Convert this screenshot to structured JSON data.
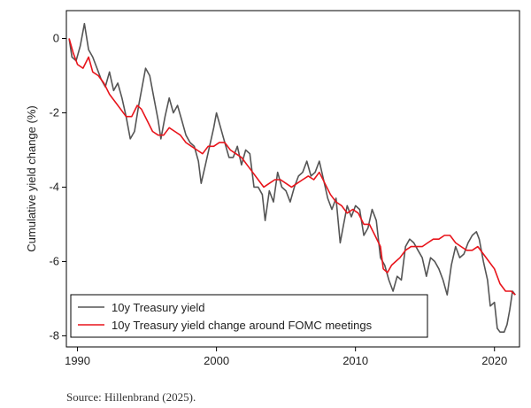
{
  "chart_data": {
    "type": "line",
    "title": "",
    "xlabel": "",
    "ylabel": "Cumulative yield change (%)",
    "xlim": [
      1989.2,
      2021.8
    ],
    "ylim": [
      -8.3,
      0.75
    ],
    "x_ticks": [
      1990,
      2000,
      2010,
      2020
    ],
    "y_ticks": [
      0,
      -2,
      -4,
      -6,
      -8
    ],
    "grid": false,
    "legend_position": "bottom-left",
    "series": [
      {
        "name": "10y Treasury yield",
        "color": "#555555",
        "points": [
          [
            1989.4,
            0.0
          ],
          [
            1989.6,
            -0.5
          ],
          [
            1989.9,
            -0.6
          ],
          [
            1990.2,
            -0.2
          ],
          [
            1990.5,
            0.4
          ],
          [
            1990.8,
            -0.3
          ],
          [
            1991.1,
            -0.5
          ],
          [
            1991.4,
            -0.8
          ],
          [
            1991.7,
            -1.1
          ],
          [
            1992.0,
            -1.3
          ],
          [
            1992.3,
            -0.9
          ],
          [
            1992.6,
            -1.4
          ],
          [
            1992.9,
            -1.2
          ],
          [
            1993.2,
            -1.6
          ],
          [
            1993.5,
            -2.1
          ],
          [
            1993.8,
            -2.7
          ],
          [
            1994.1,
            -2.5
          ],
          [
            1994.4,
            -1.8
          ],
          [
            1994.7,
            -1.2
          ],
          [
            1994.9,
            -0.8
          ],
          [
            1995.2,
            -1.0
          ],
          [
            1995.5,
            -1.6
          ],
          [
            1995.8,
            -2.2
          ],
          [
            1996.0,
            -2.7
          ],
          [
            1996.3,
            -2.1
          ],
          [
            1996.6,
            -1.6
          ],
          [
            1996.9,
            -2.0
          ],
          [
            1997.2,
            -1.8
          ],
          [
            1997.5,
            -2.2
          ],
          [
            1997.8,
            -2.6
          ],
          [
            1998.1,
            -2.8
          ],
          [
            1998.4,
            -2.9
          ],
          [
            1998.7,
            -3.3
          ],
          [
            1998.9,
            -3.9
          ],
          [
            1999.2,
            -3.4
          ],
          [
            1999.5,
            -2.9
          ],
          [
            1999.8,
            -2.4
          ],
          [
            2000.0,
            -2.0
          ],
          [
            2000.3,
            -2.4
          ],
          [
            2000.6,
            -2.8
          ],
          [
            2000.9,
            -3.2
          ],
          [
            2001.2,
            -3.2
          ],
          [
            2001.5,
            -2.9
          ],
          [
            2001.8,
            -3.4
          ],
          [
            2002.1,
            -3.0
          ],
          [
            2002.4,
            -3.1
          ],
          [
            2002.7,
            -4.0
          ],
          [
            2003.0,
            -4.0
          ],
          [
            2003.3,
            -4.2
          ],
          [
            2003.5,
            -4.9
          ],
          [
            2003.8,
            -4.1
          ],
          [
            2004.1,
            -4.4
          ],
          [
            2004.4,
            -3.6
          ],
          [
            2004.7,
            -4.0
          ],
          [
            2005.0,
            -4.1
          ],
          [
            2005.3,
            -4.4
          ],
          [
            2005.6,
            -4.0
          ],
          [
            2005.9,
            -3.7
          ],
          [
            2006.2,
            -3.6
          ],
          [
            2006.5,
            -3.3
          ],
          [
            2006.8,
            -3.7
          ],
          [
            2007.1,
            -3.6
          ],
          [
            2007.4,
            -3.3
          ],
          [
            2007.7,
            -3.8
          ],
          [
            2008.0,
            -4.3
          ],
          [
            2008.3,
            -4.6
          ],
          [
            2008.6,
            -4.3
          ],
          [
            2008.9,
            -5.5
          ],
          [
            2009.1,
            -5.1
          ],
          [
            2009.4,
            -4.5
          ],
          [
            2009.7,
            -4.8
          ],
          [
            2010.0,
            -4.5
          ],
          [
            2010.3,
            -4.6
          ],
          [
            2010.6,
            -5.3
          ],
          [
            2010.9,
            -5.1
          ],
          [
            2011.2,
            -4.6
          ],
          [
            2011.5,
            -4.9
          ],
          [
            2011.8,
            -5.9
          ],
          [
            2012.1,
            -6.1
          ],
          [
            2012.4,
            -6.5
          ],
          [
            2012.7,
            -6.8
          ],
          [
            2013.0,
            -6.4
          ],
          [
            2013.3,
            -6.5
          ],
          [
            2013.6,
            -5.6
          ],
          [
            2013.9,
            -5.4
          ],
          [
            2014.2,
            -5.5
          ],
          [
            2014.5,
            -5.7
          ],
          [
            2014.8,
            -5.9
          ],
          [
            2015.1,
            -6.4
          ],
          [
            2015.4,
            -5.9
          ],
          [
            2015.7,
            -6.0
          ],
          [
            2016.0,
            -6.2
          ],
          [
            2016.3,
            -6.5
          ],
          [
            2016.6,
            -6.9
          ],
          [
            2016.9,
            -6.1
          ],
          [
            2017.2,
            -5.6
          ],
          [
            2017.5,
            -5.9
          ],
          [
            2017.8,
            -5.8
          ],
          [
            2018.1,
            -5.5
          ],
          [
            2018.4,
            -5.3
          ],
          [
            2018.7,
            -5.2
          ],
          [
            2018.9,
            -5.4
          ],
          [
            2019.2,
            -6.0
          ],
          [
            2019.5,
            -6.5
          ],
          [
            2019.7,
            -7.2
          ],
          [
            2020.0,
            -7.1
          ],
          [
            2020.2,
            -7.8
          ],
          [
            2020.4,
            -7.9
          ],
          [
            2020.7,
            -7.9
          ],
          [
            2020.9,
            -7.7
          ],
          [
            2021.1,
            -7.3
          ],
          [
            2021.3,
            -6.8
          ],
          [
            2021.5,
            -6.9
          ]
        ]
      },
      {
        "name": "10y Treasury yield change around FOMC meetings",
        "color": "#e8141b",
        "points": [
          [
            1989.4,
            0.0
          ],
          [
            1989.7,
            -0.4
          ],
          [
            1990.0,
            -0.7
          ],
          [
            1990.4,
            -0.8
          ],
          [
            1990.8,
            -0.5
          ],
          [
            1991.1,
            -0.9
          ],
          [
            1991.5,
            -1.0
          ],
          [
            1991.9,
            -1.2
          ],
          [
            1992.3,
            -1.5
          ],
          [
            1992.7,
            -1.7
          ],
          [
            1993.1,
            -1.9
          ],
          [
            1993.5,
            -2.1
          ],
          [
            1993.9,
            -2.1
          ],
          [
            1994.3,
            -1.8
          ],
          [
            1994.6,
            -1.9
          ],
          [
            1995.0,
            -2.2
          ],
          [
            1995.4,
            -2.5
          ],
          [
            1995.8,
            -2.6
          ],
          [
            1996.2,
            -2.6
          ],
          [
            1996.6,
            -2.4
          ],
          [
            1997.0,
            -2.5
          ],
          [
            1997.4,
            -2.6
          ],
          [
            1997.8,
            -2.8
          ],
          [
            1998.2,
            -2.9
          ],
          [
            1998.6,
            -3.0
          ],
          [
            1999.0,
            -3.1
          ],
          [
            1999.4,
            -2.9
          ],
          [
            1999.8,
            -2.9
          ],
          [
            2000.2,
            -2.8
          ],
          [
            2000.6,
            -2.8
          ],
          [
            2001.0,
            -3.0
          ],
          [
            2001.4,
            -3.1
          ],
          [
            2001.8,
            -3.2
          ],
          [
            2002.2,
            -3.4
          ],
          [
            2002.6,
            -3.6
          ],
          [
            2003.0,
            -3.8
          ],
          [
            2003.4,
            -4.0
          ],
          [
            2003.8,
            -3.9
          ],
          [
            2004.2,
            -3.8
          ],
          [
            2004.6,
            -3.8
          ],
          [
            2005.0,
            -3.9
          ],
          [
            2005.4,
            -4.0
          ],
          [
            2005.8,
            -3.9
          ],
          [
            2006.2,
            -3.8
          ],
          [
            2006.6,
            -3.7
          ],
          [
            2007.0,
            -3.8
          ],
          [
            2007.4,
            -3.6
          ],
          [
            2007.8,
            -3.9
          ],
          [
            2008.2,
            -4.2
          ],
          [
            2008.6,
            -4.4
          ],
          [
            2009.0,
            -4.5
          ],
          [
            2009.4,
            -4.7
          ],
          [
            2009.8,
            -4.6
          ],
          [
            2010.2,
            -4.7
          ],
          [
            2010.6,
            -5.0
          ],
          [
            2011.0,
            -5.0
          ],
          [
            2011.4,
            -5.3
          ],
          [
            2011.8,
            -5.6
          ],
          [
            2012.0,
            -6.2
          ],
          [
            2012.3,
            -6.3
          ],
          [
            2012.6,
            -6.1
          ],
          [
            2012.9,
            -6.0
          ],
          [
            2013.2,
            -5.9
          ],
          [
            2013.6,
            -5.7
          ],
          [
            2014.0,
            -5.6
          ],
          [
            2014.4,
            -5.6
          ],
          [
            2014.8,
            -5.6
          ],
          [
            2015.2,
            -5.5
          ],
          [
            2015.6,
            -5.4
          ],
          [
            2016.0,
            -5.4
          ],
          [
            2016.4,
            -5.3
          ],
          [
            2016.8,
            -5.3
          ],
          [
            2017.2,
            -5.5
          ],
          [
            2017.6,
            -5.6
          ],
          [
            2018.0,
            -5.7
          ],
          [
            2018.4,
            -5.7
          ],
          [
            2018.8,
            -5.6
          ],
          [
            2019.2,
            -5.8
          ],
          [
            2019.6,
            -6.0
          ],
          [
            2020.0,
            -6.2
          ],
          [
            2020.4,
            -6.6
          ],
          [
            2020.8,
            -6.8
          ],
          [
            2021.2,
            -6.8
          ],
          [
            2021.5,
            -6.9
          ]
        ]
      }
    ]
  },
  "source_note": "Source: Hillenbrand (2025)."
}
